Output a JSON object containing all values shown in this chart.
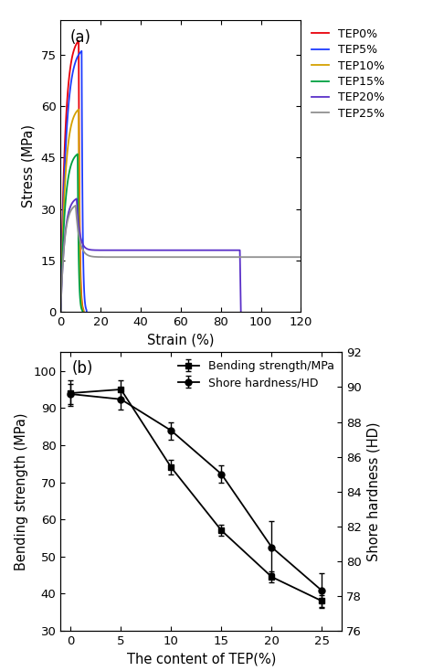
{
  "panel_a": {
    "label": "(a)",
    "xlabel": "Strain (%)",
    "ylabel": "Stress (MPa)",
    "xlim": [
      0,
      120
    ],
    "ylim": [
      0,
      85
    ],
    "yticks": [
      0,
      15,
      30,
      45,
      60,
      75
    ],
    "xticks": [
      0,
      20,
      40,
      60,
      80,
      100,
      120
    ],
    "curves": {
      "TEP0%": {
        "color": "#e8000a",
        "peak_x": 9.0,
        "peak_y": 79,
        "valley_x": 11.5,
        "valley_y": 0,
        "plateau_y": null,
        "end_x": null,
        "type": "brittle"
      },
      "TEP5%": {
        "color": "#1e3cff",
        "peak_x": 10.5,
        "peak_y": 76,
        "valley_x": 13.0,
        "valley_y": 0,
        "plateau_y": null,
        "end_x": null,
        "type": "brittle"
      },
      "TEP10%": {
        "color": "#d4a000",
        "peak_x": 9.0,
        "peak_y": 59,
        "valley_x": 11.5,
        "valley_y": 0,
        "plateau_y": null,
        "end_x": null,
        "type": "brittle"
      },
      "TEP15%": {
        "color": "#00a040",
        "peak_x": 8.5,
        "peak_y": 46,
        "valley_x": 11.0,
        "valley_y": 0,
        "plateau_y": null,
        "end_x": null,
        "type": "brittle"
      },
      "TEP20%": {
        "color": "#5a30c8",
        "peak_x": 8.0,
        "peak_y": 33,
        "valley_x": 13.0,
        "valley_y": 20,
        "plateau_y": 18,
        "end_x": 90,
        "type": "ductile"
      },
      "TEP25%": {
        "color": "#909090",
        "peak_x": 7.5,
        "peak_y": 31,
        "valley_x": 13.0,
        "valley_y": 20,
        "plateau_y": 16,
        "end_x": 120,
        "type": "ductile_long"
      }
    },
    "legend_entries": [
      "TEP0%",
      "TEP5%",
      "TEP10%",
      "TEP15%",
      "TEP20%",
      "TEP25%"
    ]
  },
  "panel_b": {
    "label": "(b)",
    "xlabel": "The content of TEP(%)",
    "ylabel_left": "Bending strength (MPa)",
    "ylabel_right": "Shore hardness (HD)",
    "xlim": [
      -1,
      27
    ],
    "ylim_left": [
      30,
      105
    ],
    "ylim_right": [
      76,
      92
    ],
    "yticks_left": [
      30,
      40,
      50,
      60,
      70,
      80,
      90,
      100
    ],
    "yticks_right": [
      76,
      78,
      80,
      82,
      84,
      86,
      88,
      90,
      92
    ],
    "xticks": [
      0,
      5,
      10,
      15,
      20,
      25
    ],
    "bending_x": [
      0,
      5,
      10,
      15,
      20,
      25
    ],
    "bending_y": [
      94.0,
      95.0,
      74.0,
      57.0,
      44.5,
      38.0
    ],
    "bending_yerr": [
      3.5,
      2.5,
      2.0,
      1.5,
      1.5,
      1.5
    ],
    "hardness_x": [
      0,
      5,
      10,
      15,
      20,
      25
    ],
    "hardness_y": [
      89.6,
      89.3,
      87.5,
      85.0,
      80.8,
      78.3
    ],
    "hardness_yerr": [
      0.6,
      0.6,
      0.5,
      0.5,
      1.5,
      1.0
    ],
    "legend_entries": [
      "Bending strength/MPa",
      "Shore hardness/HD"
    ]
  }
}
